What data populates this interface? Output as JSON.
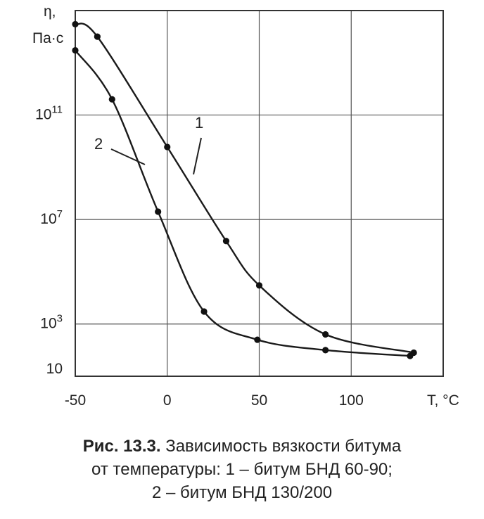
{
  "chart_data": {
    "type": "line",
    "y_scale": "log",
    "ylabel_symbol": "η,",
    "ylabel_unit": "Па·с",
    "xlabel": "T, °C",
    "x_ticks": [
      {
        "value": -50,
        "label": "-50"
      },
      {
        "value": 0,
        "label": "0"
      },
      {
        "value": 50,
        "label": "50"
      },
      {
        "value": 100,
        "label": "100"
      }
    ],
    "y_ticks": [
      {
        "value": 10,
        "base": "10",
        "exp": ""
      },
      {
        "value": 1000,
        "base": "10",
        "exp": "3"
      },
      {
        "value": 10000000,
        "base": "10",
        "exp": "7"
      },
      {
        "value": 100000000000,
        "base": "10",
        "exp": "11"
      }
    ],
    "xlim": [
      -50,
      150
    ],
    "ylim": [
      10,
      1000000000000000
    ],
    "grid": true,
    "series": [
      {
        "name": "1",
        "points": [
          {
            "x": -50,
            "y": 300000000000000.0
          },
          {
            "x": -38,
            "y": 100000000000000.0
          },
          {
            "x": 0,
            "y": 6000000000.0
          },
          {
            "x": 32,
            "y": 1500000.0
          },
          {
            "x": 50,
            "y": 30000.0
          },
          {
            "x": 86,
            "y": 400
          },
          {
            "x": 134,
            "y": 80
          }
        ]
      },
      {
        "name": "2",
        "points": [
          {
            "x": -50,
            "y": 30000000000000.0
          },
          {
            "x": -30,
            "y": 400000000000.0
          },
          {
            "x": -5,
            "y": 20000000.0
          },
          {
            "x": 20,
            "y": 3000
          },
          {
            "x": 49,
            "y": 250
          },
          {
            "x": 86,
            "y": 100
          },
          {
            "x": 132,
            "y": 60
          }
        ]
      }
    ]
  },
  "caption": {
    "figure_label": "Рис. 13.3.",
    "line1_rest": " Зависимость вязкости битума",
    "line2": "от температуры: 1 – битум БНД 60-90;",
    "line3": "2 – битум БНД 130/200"
  }
}
